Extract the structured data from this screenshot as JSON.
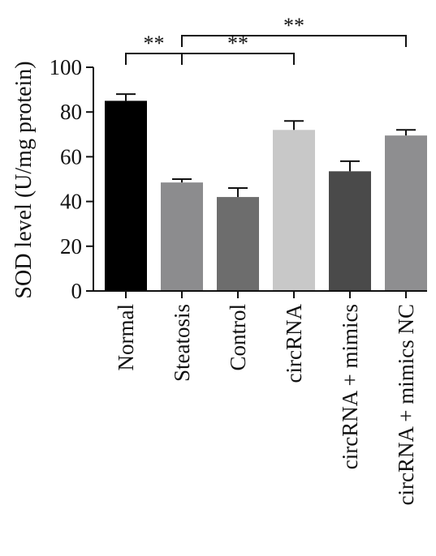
{
  "chart_data": {
    "type": "bar",
    "ylabel": "SOD level (U/mg protein)",
    "xlabel": "",
    "ylim": [
      0,
      100
    ],
    "yticks": [
      0,
      20,
      40,
      60,
      80,
      100
    ],
    "categories": [
      "Normal",
      "Steatosis",
      "Control",
      "circRNA",
      "circRNA + mimics",
      "circRNA + mimics NC"
    ],
    "values": [
      85,
      48.5,
      42,
      72,
      53.5,
      69.5
    ],
    "errors": [
      3,
      1.5,
      4,
      4,
      4.5,
      2.5
    ],
    "colors": [
      "#000000",
      "#8c8c8e",
      "#6d6d6d",
      "#c8c8c8",
      "#4a4a4a",
      "#8e8e90"
    ],
    "significance": [
      {
        "from": 0,
        "to": 1,
        "label": "**"
      },
      {
        "from": 1,
        "to": 3,
        "label": "**"
      },
      {
        "from": 1,
        "to": 5,
        "label": "**"
      }
    ]
  }
}
